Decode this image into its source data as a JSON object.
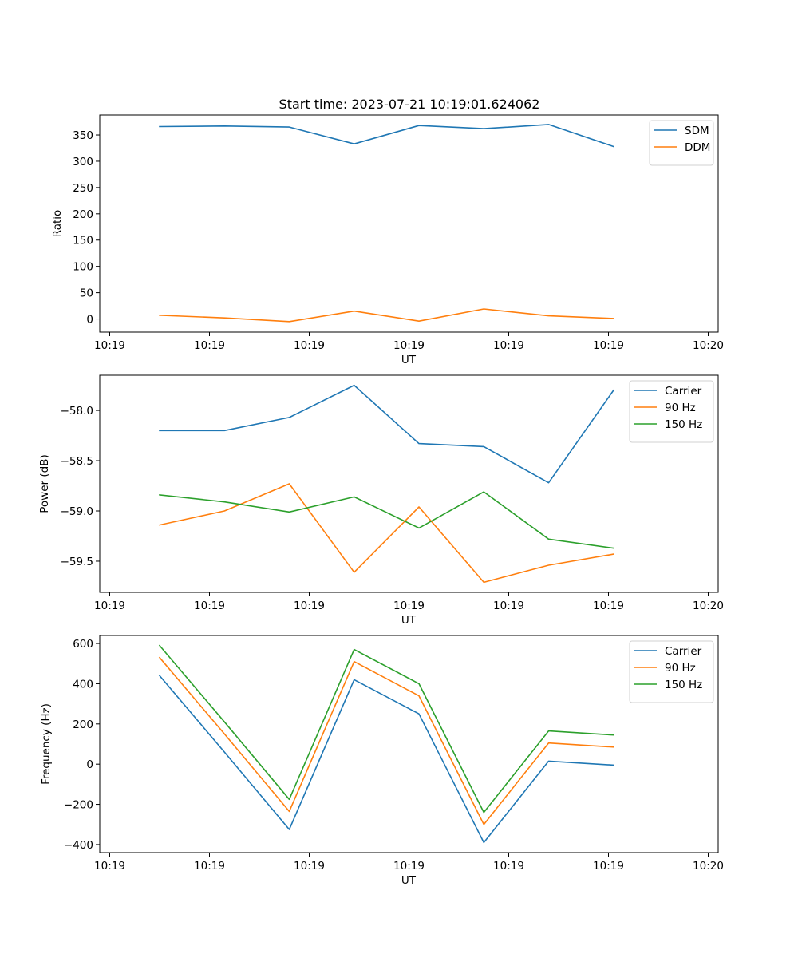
{
  "figure": {
    "title": "Start time: 2023-07-21 10:19:01.624062"
  },
  "colors": {
    "blue": "#1f77b4",
    "orange": "#ff7f0e",
    "green": "#2ca02c"
  },
  "chart_data": [
    {
      "type": "line",
      "title": "Start time: 2023-07-21 10:19:01.624062",
      "xlabel": "UT",
      "ylabel": "Ratio",
      "xlim": [
        0,
        6.2
      ],
      "ylim": [
        -25,
        388
      ],
      "x_ticks": [
        0.1,
        1.1,
        2.1,
        3.1,
        4.1,
        5.1,
        6.1
      ],
      "x_tick_labels": [
        "10:19",
        "10:19",
        "10:19",
        "10:19",
        "10:19",
        "10:19",
        "10:20"
      ],
      "y_ticks": [
        0,
        50,
        100,
        150,
        200,
        250,
        300,
        350
      ],
      "y_tick_labels": [
        "0",
        "50",
        "100",
        "150",
        "200",
        "250",
        "300",
        "350"
      ],
      "x": [
        0.6,
        1.25,
        1.9,
        2.55,
        3.2,
        3.85,
        4.5,
        5.15
      ],
      "series": [
        {
          "name": "SDM",
          "color": "#1f77b4",
          "values": [
            366,
            367,
            365,
            333,
            368,
            362,
            370,
            328
          ]
        },
        {
          "name": "DDM",
          "color": "#ff7f0e",
          "values": [
            7,
            2,
            -5,
            15,
            -4,
            19,
            6,
            1
          ]
        }
      ],
      "legend": "top-right"
    },
    {
      "type": "line",
      "title": "",
      "xlabel": "UT",
      "ylabel": "Power (dB)",
      "xlim": [
        0,
        6.2
      ],
      "ylim": [
        -59.81,
        -57.65
      ],
      "x_ticks": [
        0.1,
        1.1,
        2.1,
        3.1,
        4.1,
        5.1,
        6.1
      ],
      "x_tick_labels": [
        "10:19",
        "10:19",
        "10:19",
        "10:19",
        "10:19",
        "10:19",
        "10:20"
      ],
      "y_ticks": [
        -58.0,
        -58.5,
        -59.0,
        -59.5
      ],
      "y_tick_labels": [
        "−58.0",
        "−58.5",
        "−59.0",
        "−59.5"
      ],
      "x": [
        0.6,
        1.25,
        1.9,
        2.55,
        3.2,
        3.85,
        4.5,
        5.15
      ],
      "series": [
        {
          "name": "Carrier",
          "color": "#1f77b4",
          "values": [
            -58.2,
            -58.2,
            -58.07,
            -57.75,
            -58.33,
            -58.36,
            -58.72,
            -57.8
          ]
        },
        {
          "name": "90 Hz",
          "color": "#ff7f0e",
          "values": [
            -59.14,
            -59.0,
            -58.73,
            -59.61,
            -58.96,
            -59.71,
            -59.54,
            -59.43
          ]
        },
        {
          "name": "150 Hz",
          "color": "#2ca02c",
          "values": [
            -58.84,
            -58.91,
            -59.01,
            -58.86,
            -59.17,
            -58.81,
            -59.28,
            -59.37
          ]
        }
      ],
      "legend": "top-right"
    },
    {
      "type": "line",
      "title": "",
      "xlabel": "UT",
      "ylabel": "Frequency (Hz)",
      "xlim": [
        0,
        6.2
      ],
      "ylim": [
        -440,
        640
      ],
      "x_ticks": [
        0.1,
        1.1,
        2.1,
        3.1,
        4.1,
        5.1,
        6.1
      ],
      "x_tick_labels": [
        "10:19",
        "10:19",
        "10:19",
        "10:19",
        "10:19",
        "10:19",
        "10:20"
      ],
      "y_ticks": [
        -400,
        -200,
        0,
        200,
        400,
        600
      ],
      "y_tick_labels": [
        "−400",
        "−200",
        "0",
        "200",
        "400",
        "600"
      ],
      "x": [
        0.6,
        1.25,
        1.9,
        2.55,
        3.2,
        3.85,
        4.5,
        5.15
      ],
      "series": [
        {
          "name": "Carrier",
          "color": "#1f77b4",
          "values": [
            440,
            60,
            -325,
            420,
            250,
            -390,
            15,
            -5
          ]
        },
        {
          "name": "90 Hz",
          "color": "#ff7f0e",
          "values": [
            530,
            150,
            -235,
            510,
            340,
            -300,
            105,
            85
          ]
        },
        {
          "name": "150 Hz",
          "color": "#2ca02c",
          "values": [
            590,
            210,
            -175,
            570,
            400,
            -240,
            165,
            145
          ]
        }
      ],
      "legend": "top-right"
    }
  ]
}
